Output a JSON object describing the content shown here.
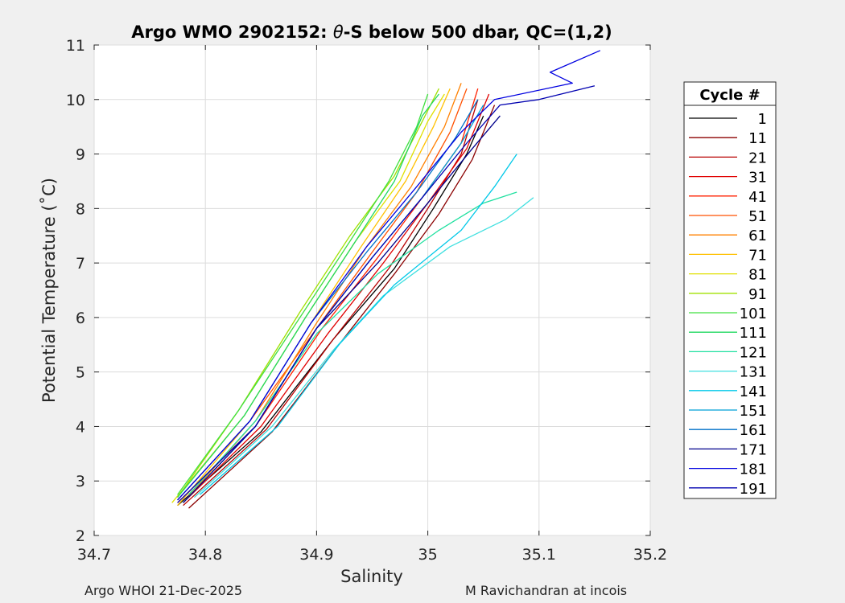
{
  "chart_data": {
    "type": "line",
    "title_prefix": "Argo WMO 2902152: ",
    "title_symbol": "θ",
    "title_suffix": "-S below 500 dbar,  QC=(1,2)",
    "xlabel": "Salinity",
    "ylabel": "Potential Temperature (˚C)",
    "xlim": [
      34.7,
      35.2
    ],
    "ylim": [
      2,
      11
    ],
    "xticks": [
      "34.7",
      "34.8",
      "34.9",
      "35",
      "35.1",
      "35.2"
    ],
    "yticks": [
      "2",
      "3",
      "4",
      "5",
      "6",
      "7",
      "8",
      "9",
      "10",
      "11"
    ],
    "grid": true,
    "legend_title": "Cycle #",
    "legend_position": "outside-right",
    "series": [
      {
        "name": "1",
        "color": "#000000",
        "points": [
          [
            34.775,
            2.55
          ],
          [
            34.85,
            3.9
          ],
          [
            34.915,
            5.6
          ],
          [
            34.97,
            6.9
          ],
          [
            35.005,
            8.0
          ],
          [
            35.035,
            9.0
          ],
          [
            35.05,
            9.7
          ]
        ]
      },
      {
        "name": "11",
        "color": "#8b0000",
        "points": [
          [
            34.785,
            2.5
          ],
          [
            34.86,
            3.9
          ],
          [
            34.92,
            5.5
          ],
          [
            34.97,
            6.8
          ],
          [
            35.01,
            7.9
          ],
          [
            35.04,
            8.9
          ],
          [
            35.06,
            9.9
          ]
        ]
      },
      {
        "name": "21",
        "color": "#b80000",
        "points": [
          [
            34.78,
            2.55
          ],
          [
            34.855,
            3.95
          ],
          [
            34.915,
            5.6
          ],
          [
            34.965,
            6.9
          ],
          [
            35.0,
            8.0
          ],
          [
            35.03,
            9.0
          ],
          [
            35.045,
            10.0
          ]
        ]
      },
      {
        "name": "31",
        "color": "#e00000",
        "points": [
          [
            34.78,
            2.6
          ],
          [
            34.85,
            4.0
          ],
          [
            34.91,
            5.7
          ],
          [
            34.96,
            7.0
          ],
          [
            35.0,
            8.1
          ],
          [
            35.035,
            9.1
          ],
          [
            35.055,
            10.1
          ]
        ]
      },
      {
        "name": "41",
        "color": "#ff2000",
        "points": [
          [
            34.775,
            2.6
          ],
          [
            34.845,
            4.0
          ],
          [
            34.905,
            5.8
          ],
          [
            34.955,
            7.1
          ],
          [
            34.995,
            8.2
          ],
          [
            35.03,
            9.2
          ],
          [
            35.045,
            10.2
          ]
        ]
      },
      {
        "name": "51",
        "color": "#ff5000",
        "points": [
          [
            34.775,
            2.65
          ],
          [
            34.84,
            4.1
          ],
          [
            34.9,
            5.8
          ],
          [
            34.95,
            7.2
          ],
          [
            34.99,
            8.3
          ],
          [
            35.02,
            9.4
          ],
          [
            35.035,
            10.2
          ]
        ]
      },
      {
        "name": "61",
        "color": "#ff8000",
        "points": [
          [
            34.78,
            2.6
          ],
          [
            34.845,
            4.1
          ],
          [
            34.9,
            5.9
          ],
          [
            34.945,
            7.3
          ],
          [
            34.985,
            8.4
          ],
          [
            35.015,
            9.5
          ],
          [
            35.03,
            10.3
          ]
        ]
      },
      {
        "name": "71",
        "color": "#ffc000",
        "points": [
          [
            34.775,
            2.55
          ],
          [
            34.84,
            4.1
          ],
          [
            34.895,
            5.9
          ],
          [
            34.94,
            7.3
          ],
          [
            34.98,
            8.5
          ],
          [
            35.005,
            9.5
          ],
          [
            35.02,
            10.2
          ]
        ]
      },
      {
        "name": "81",
        "color": "#e0e000",
        "points": [
          [
            34.77,
            2.6
          ],
          [
            34.835,
            4.2
          ],
          [
            34.89,
            6.0
          ],
          [
            34.935,
            7.4
          ],
          [
            34.975,
            8.5
          ],
          [
            35.0,
            9.6
          ],
          [
            35.015,
            10.1
          ]
        ]
      },
      {
        "name": "91",
        "color": "#a0e000",
        "points": [
          [
            34.775,
            2.7
          ],
          [
            34.83,
            4.3
          ],
          [
            34.885,
            6.1
          ],
          [
            34.93,
            7.5
          ],
          [
            34.97,
            8.6
          ],
          [
            34.995,
            9.6
          ],
          [
            35.01,
            10.2
          ]
        ]
      },
      {
        "name": "101",
        "color": "#40e040",
        "points": [
          [
            34.775,
            2.75
          ],
          [
            34.83,
            4.3
          ],
          [
            34.885,
            6.0
          ],
          [
            34.93,
            7.4
          ],
          [
            34.965,
            8.5
          ],
          [
            34.99,
            9.5
          ],
          [
            35.0,
            10.1
          ]
        ]
      },
      {
        "name": "111",
        "color": "#20d860",
        "points": [
          [
            34.775,
            2.7
          ],
          [
            34.835,
            4.2
          ],
          [
            34.89,
            6.0
          ],
          [
            34.935,
            7.4
          ],
          [
            34.97,
            8.5
          ],
          [
            34.995,
            9.7
          ],
          [
            35.01,
            10.1
          ]
        ]
      },
      {
        "name": "121",
        "color": "#20e0a0",
        "points": [
          [
            34.785,
            2.75
          ],
          [
            34.845,
            4.1
          ],
          [
            34.9,
            5.7
          ],
          [
            34.955,
            6.8
          ],
          [
            35.01,
            7.6
          ],
          [
            35.05,
            8.1
          ],
          [
            35.08,
            8.3
          ]
        ]
      },
      {
        "name": "131",
        "color": "#40e0e0",
        "points": [
          [
            34.79,
            2.7
          ],
          [
            34.86,
            4.0
          ],
          [
            34.915,
            5.4
          ],
          [
            34.96,
            6.4
          ],
          [
            35.02,
            7.3
          ],
          [
            35.07,
            7.8
          ],
          [
            35.095,
            8.2
          ]
        ]
      },
      {
        "name": "141",
        "color": "#00c8e8",
        "points": [
          [
            34.795,
            2.75
          ],
          [
            34.865,
            4.0
          ],
          [
            34.92,
            5.5
          ],
          [
            34.97,
            6.6
          ],
          [
            35.03,
            7.6
          ],
          [
            35.06,
            8.4
          ],
          [
            35.08,
            9.0
          ]
        ]
      },
      {
        "name": "151",
        "color": "#00a0d8",
        "points": [
          [
            34.78,
            2.6
          ],
          [
            34.845,
            4.0
          ],
          [
            34.9,
            5.8
          ],
          [
            34.95,
            7.1
          ],
          [
            34.995,
            8.2
          ],
          [
            35.03,
            9.2
          ],
          [
            35.05,
            9.9
          ]
        ]
      },
      {
        "name": "161",
        "color": "#0070c8",
        "points": [
          [
            34.775,
            2.65
          ],
          [
            34.84,
            4.1
          ],
          [
            34.895,
            5.9
          ],
          [
            34.945,
            7.2
          ],
          [
            34.99,
            8.3
          ],
          [
            35.025,
            9.3
          ],
          [
            35.045,
            10.0
          ]
        ]
      },
      {
        "name": "171",
        "color": "#00008b",
        "points": [
          [
            34.78,
            2.6
          ],
          [
            34.845,
            4.0
          ],
          [
            34.9,
            5.8
          ],
          [
            34.955,
            7.0
          ],
          [
            35.0,
            8.1
          ],
          [
            35.04,
            9.1
          ],
          [
            35.065,
            9.7
          ]
        ]
      },
      {
        "name": "181",
        "color": "#0000e0",
        "points": [
          [
            34.775,
            2.65
          ],
          [
            34.84,
            4.1
          ],
          [
            34.895,
            5.9
          ],
          [
            34.945,
            7.3
          ],
          [
            34.99,
            8.4
          ],
          [
            35.03,
            9.4
          ],
          [
            35.06,
            10.0
          ],
          [
            35.13,
            10.3
          ],
          [
            35.11,
            10.5
          ],
          [
            35.155,
            10.9
          ]
        ]
      },
      {
        "name": "191",
        "color": "#0000b0",
        "points": [
          [
            34.775,
            2.6
          ],
          [
            34.845,
            4.0
          ],
          [
            34.9,
            5.8
          ],
          [
            34.95,
            7.1
          ],
          [
            34.995,
            8.2
          ],
          [
            35.035,
            9.2
          ],
          [
            35.065,
            9.9
          ],
          [
            35.1,
            10.0
          ],
          [
            35.15,
            10.25
          ]
        ]
      }
    ]
  },
  "footer": {
    "left": "Argo WHOI 21-Dec-2025",
    "right": "M Ravichandran at incois"
  }
}
